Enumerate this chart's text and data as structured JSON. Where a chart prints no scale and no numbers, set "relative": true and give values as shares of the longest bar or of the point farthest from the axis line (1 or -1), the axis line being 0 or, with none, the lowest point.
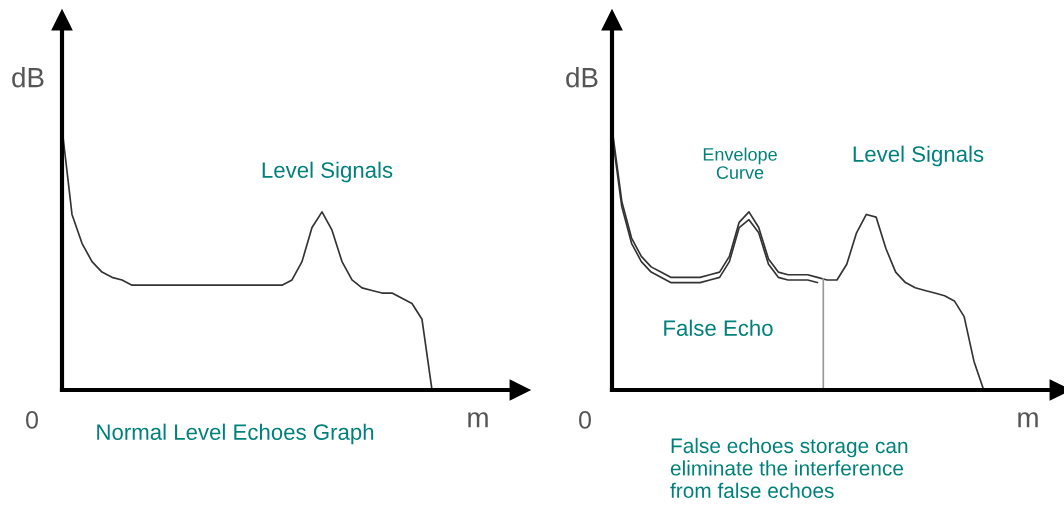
{
  "chart_data": [
    {
      "type": "line",
      "relative": true,
      "ylabel": "dB",
      "xlabel": "m",
      "legend": false,
      "marker": "none",
      "line_style": "solid",
      "categories": [
        null,
        null,
        null,
        null,
        null,
        null,
        null,
        null,
        null,
        null,
        null,
        null,
        null,
        null,
        null,
        null,
        null,
        null,
        null,
        null,
        null,
        null,
        null,
        null,
        null,
        null,
        null,
        null,
        null,
        null,
        null,
        null,
        null,
        null,
        null,
        null,
        null,
        null,
        null,
        null,
        null,
        null,
        null,
        null,
        null,
        null
      ],
      "series": [
        {
          "color": "#333333",
          "values": [
            1.0,
            0.67,
            0.56,
            0.49,
            0.45,
            0.43,
            0.42,
            0.4,
            0.4,
            0.4,
            0.4,
            0.4,
            0.4,
            0.4,
            0.4,
            0.4,
            0.4,
            0.4,
            0.4,
            0.4,
            0.4,
            0.4,
            0.4,
            0.42,
            0.49,
            0.62,
            0.68,
            0.61,
            0.49,
            0.42,
            0.39,
            0.38,
            0.37,
            0.37,
            0.35,
            0.33,
            0.27,
            0,
            null,
            null,
            null,
            null,
            null,
            null,
            null,
            null
          ]
        }
      ],
      "annotations": [
        "0",
        "Level Signals",
        "Normal Level Echoes Graph"
      ]
    },
    {
      "type": "line",
      "relative": true,
      "ylabel": "dB",
      "xlabel": "m",
      "legend": false,
      "marker": "none",
      "line_style": "solid",
      "categories": [
        null,
        null,
        null,
        null,
        null,
        null,
        null,
        null,
        null,
        null,
        null,
        null,
        null,
        null,
        null,
        null,
        null,
        null,
        null,
        null,
        null,
        null,
        null,
        null,
        null,
        null,
        null,
        null,
        null,
        null,
        null,
        null,
        null,
        null,
        null,
        null,
        null,
        null,
        null,
        null,
        null,
        null,
        null,
        null,
        null,
        null
      ],
      "series": [
        {
          "color": "#333333",
          "values": [
            1.0,
            0.72,
            0.58,
            0.51,
            0.47,
            0.45,
            0.43,
            0.43,
            0.43,
            0.43,
            0.44,
            0.45,
            0.51,
            0.64,
            0.68,
            0.62,
            0.5,
            0.45,
            0.44,
            0.44,
            0.44,
            0.43,
            0.42,
            0.42,
            0.48,
            0.6,
            0.67,
            0.66,
            0.54,
            0.45,
            0.41,
            0.39,
            0.38,
            0.37,
            0.36,
            0.34,
            0.28,
            0.11,
            0,
            null,
            null,
            null,
            null,
            null,
            null,
            null
          ]
        },
        {
          "color": "#333333",
          "values": [
            0.98,
            0.7,
            0.56,
            0.49,
            0.45,
            0.43,
            0.41,
            0.41,
            0.41,
            0.41,
            0.42,
            0.43,
            0.49,
            0.62,
            0.65,
            0.6,
            0.48,
            0.43,
            0.42,
            0.42,
            0.42,
            0.41,
            null,
            null,
            null,
            null,
            null,
            null,
            null,
            null,
            null,
            null,
            null,
            null,
            null,
            null,
            null,
            null,
            null,
            null,
            null,
            null,
            null,
            null,
            null,
            null
          ]
        }
      ],
      "annotations": [
        "0",
        "Envelope\nCurve",
        "Level Signals",
        "False Echo",
        "False echoes storage can\neliminate the interference\nfrom false echoes"
      ]
    }
  ]
}
